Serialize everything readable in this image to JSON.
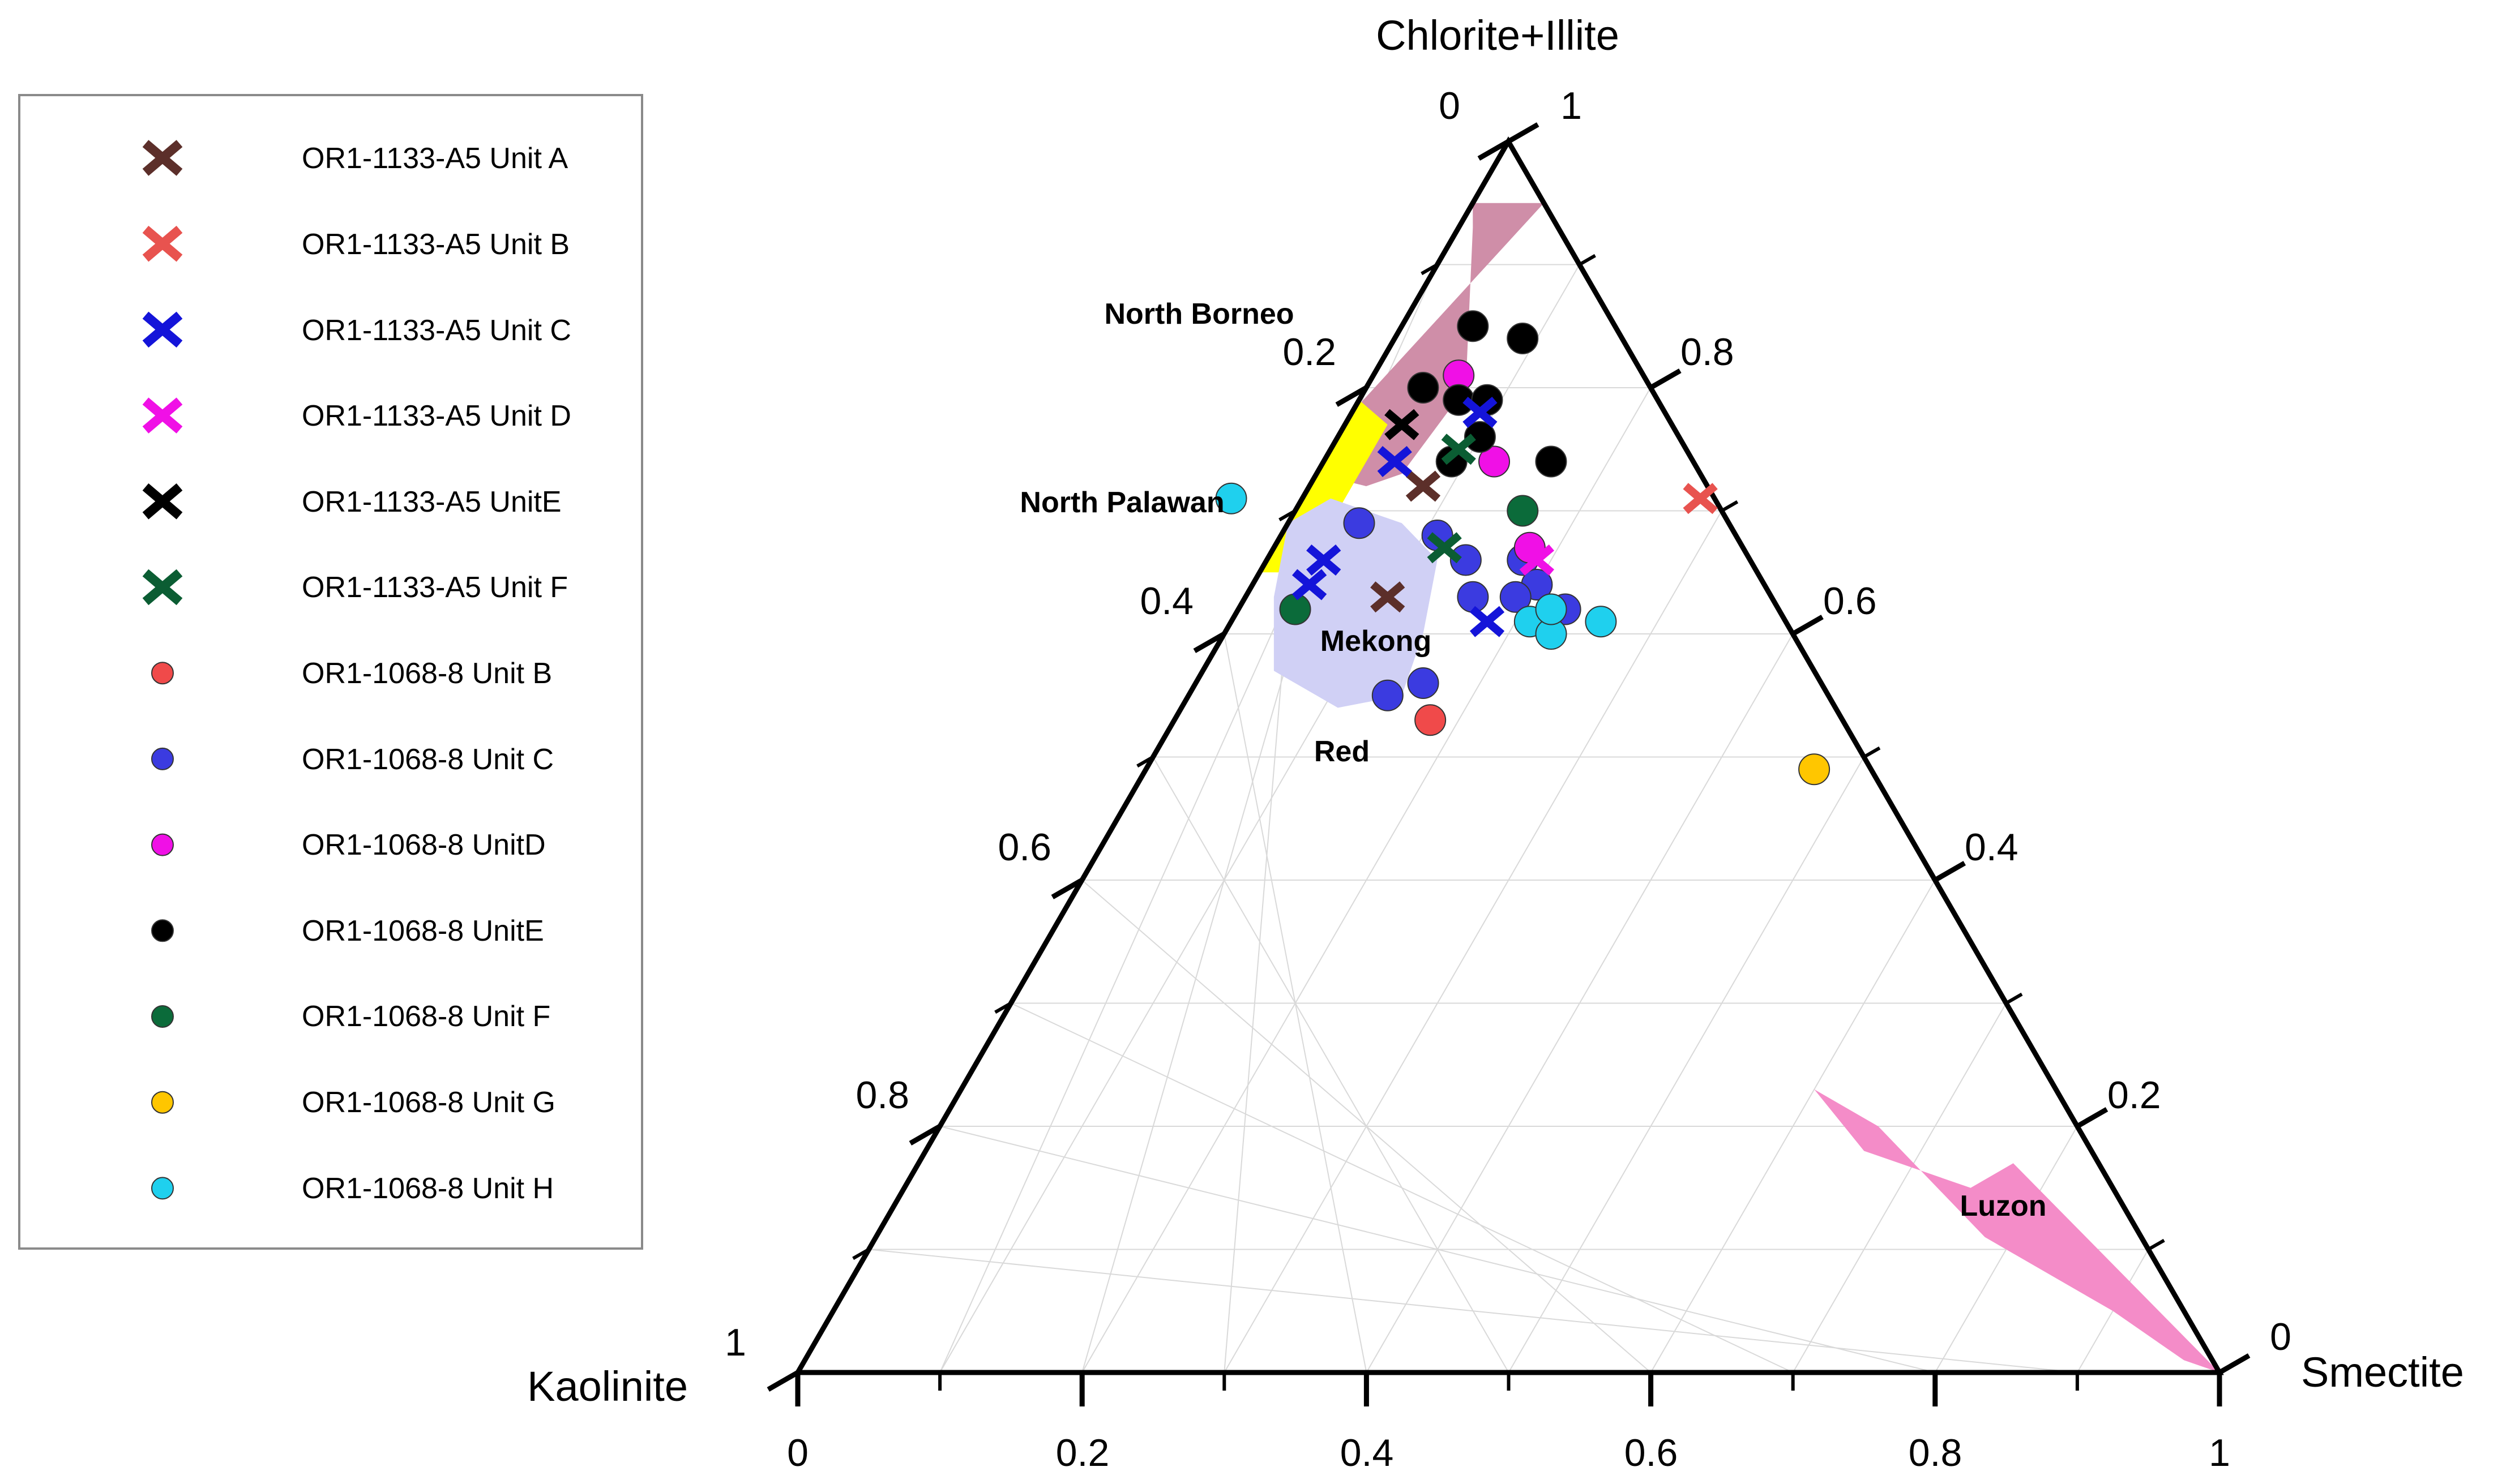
{
  "chart_data": {
    "type": "ternary",
    "axes": {
      "top": "Chlorite+Illite",
      "left": "Kaolinite",
      "right": "Smectite"
    },
    "ticks": {
      "bottom": [
        "0",
        "0.2",
        "0.4",
        "0.6",
        "0.8",
        "1"
      ],
      "left": [
        "0.2",
        "0.4",
        "0.6",
        "0.8",
        "1"
      ],
      "right": [
        "0.2",
        "0.4",
        "0.6",
        "0.8"
      ],
      "top_left": "0",
      "top_right": "1",
      "right_corner": "0"
    },
    "grid": true,
    "legend_position": "left",
    "series": [
      {
        "name": "OR1-1133-A5 Unit A",
        "marker": "x",
        "color": "#5c2f2a",
        "points": [
          [
            0.2,
            0.72,
            0.08
          ],
          [
            0.27,
            0.63,
            0.1
          ]
        ]
      },
      {
        "name": "OR1-1133-A5 Unit B",
        "marker": "x",
        "color": "#e8534f",
        "points": [
          [
            0.01,
            0.71,
            0.28
          ]
        ]
      },
      {
        "name": "OR1-1133-A5 Unit C",
        "marker": "x",
        "color": "#1414d9",
        "points": [
          [
            0.13,
            0.78,
            0.09
          ],
          [
            0.21,
            0.74,
            0.05
          ],
          [
            0.3,
            0.66,
            0.04
          ],
          [
            0.32,
            0.64,
            0.04
          ],
          [
            0.21,
            0.61,
            0.18
          ]
        ]
      },
      {
        "name": "OR1-1133-A5 Unit D",
        "marker": "x",
        "color": "#f010e6",
        "points": [
          [
            0.15,
            0.66,
            0.19
          ]
        ]
      },
      {
        "name": "OR1-1133-A5 UnitE",
        "marker": "x",
        "color": "#000000",
        "points": [
          [
            0.19,
            0.77,
            0.04
          ]
        ]
      },
      {
        "name": "OR1-1133-A5 Unit F",
        "marker": "x",
        "color": "#0b5d33",
        "points": [
          [
            0.16,
            0.75,
            0.09
          ],
          [
            0.21,
            0.67,
            0.12
          ]
        ]
      },
      {
        "name": "OR1-1068-8 Unit B",
        "marker": "circle",
        "color": "#f04a4a",
        "points": [
          [
            0.29,
            0.53,
            0.18
          ]
        ]
      },
      {
        "name": "OR1-1068-8 Unit C",
        "marker": "circle",
        "color": "#3b3be0",
        "points": [
          [
            0.26,
            0.69,
            0.05
          ],
          [
            0.21,
            0.68,
            0.11
          ],
          [
            0.2,
            0.66,
            0.14
          ],
          [
            0.16,
            0.66,
            0.18
          ],
          [
            0.21,
            0.63,
            0.16
          ],
          [
            0.16,
            0.64,
            0.2
          ],
          [
            0.18,
            0.63,
            0.19
          ],
          [
            0.15,
            0.62,
            0.23
          ],
          [
            0.28,
            0.56,
            0.16
          ],
          [
            0.31,
            0.55,
            0.14
          ]
        ]
      },
      {
        "name": "OR1-1068-8 UnitD",
        "marker": "circle",
        "color": "#f010e6",
        "points": [
          [
            0.13,
            0.81,
            0.06
          ],
          [
            0.14,
            0.74,
            0.12
          ],
          [
            0.15,
            0.67,
            0.18
          ]
        ]
      },
      {
        "name": "OR1-1068-8 UnitE",
        "marker": "circle",
        "color": "#000000",
        "points": [
          [
            0.1,
            0.85,
            0.05
          ],
          [
            0.16,
            0.8,
            0.04
          ],
          [
            0.07,
            0.84,
            0.09
          ],
          [
            0.14,
            0.79,
            0.07
          ],
          [
            0.12,
            0.79,
            0.09
          ],
          [
            0.14,
            0.76,
            0.1
          ],
          [
            0.17,
            0.74,
            0.09
          ],
          [
            0.1,
            0.74,
            0.16
          ]
        ]
      },
      {
        "name": "OR1-1068-8 Unit F",
        "marker": "circle",
        "color": "#0b6b3a",
        "points": [
          [
            0.14,
            0.7,
            0.16
          ],
          [
            0.34,
            0.62,
            0.04
          ]
        ]
      },
      {
        "name": "OR1-1068-8 Unit G",
        "marker": "circle",
        "color": "#ffc600",
        "points": [
          [
            0.04,
            0.49,
            0.47
          ]
        ]
      },
      {
        "name": "OR1-1068-8 Unit H",
        "marker": "circle",
        "color": "#1fd0ee",
        "points": [
          [
            0.34,
            0.71,
            -0.05
          ],
          [
            0.18,
            0.61,
            0.21
          ],
          [
            0.13,
            0.61,
            0.26
          ],
          [
            0.17,
            0.6,
            0.23
          ],
          [
            0.16,
            0.62,
            0.22
          ]
        ]
      }
    ],
    "regions": [
      {
        "name": "North Borneo",
        "color": "#cf8ea8",
        "points": [
          [
            0.22,
            0.78,
            0.0
          ],
          [
            0.0,
            0.95,
            0.05
          ],
          [
            0.05,
            0.95,
            0.0
          ],
          [
            0.06,
            0.93,
            0.01
          ],
          [
            0.13,
            0.8,
            0.07
          ],
          [
            0.21,
            0.73,
            0.06
          ],
          [
            0.24,
            0.72,
            0.04
          ],
          [
            0.27,
            0.73,
            0.0
          ]
        ]
      },
      {
        "name": "North Palawan",
        "color": "#ffff00",
        "points": [
          [
            0.35,
            0.65,
            0.0
          ],
          [
            0.33,
            0.65,
            0.02
          ],
          [
            0.28,
            0.69,
            0.03
          ],
          [
            0.22,
            0.75,
            0.03
          ],
          [
            0.2,
            0.77,
            0.03
          ],
          [
            0.21,
            0.79,
            0.0
          ]
        ]
      },
      {
        "name": "Mekong",
        "color": "#d0d0f5",
        "points": [
          [
            0.31,
            0.69,
            0.0
          ],
          [
            0.35,
            0.63,
            0.02
          ],
          [
            0.38,
            0.57,
            0.05
          ],
          [
            0.35,
            0.54,
            0.11
          ],
          [
            0.3,
            0.55,
            0.15
          ],
          [
            0.26,
            0.6,
            0.14
          ],
          [
            0.22,
            0.66,
            0.12
          ],
          [
            0.23,
            0.69,
            0.08
          ],
          [
            0.27,
            0.71,
            0.02
          ]
        ]
      },
      {
        "name": "Luzon",
        "color": "#f48cc8",
        "points": [
          [
            0.17,
            0.23,
            0.6
          ],
          [
            0.16,
            0.18,
            0.66
          ],
          [
            0.1,
            0.15,
            0.75
          ],
          [
            0.06,
            0.17,
            0.77
          ],
          [
            0.0,
            0.0,
            1.0
          ],
          [
            0.02,
            0.01,
            0.97
          ],
          [
            0.05,
            0.05,
            0.9
          ],
          [
            0.11,
            0.11,
            0.78
          ],
          [
            0.14,
            0.2,
            0.66
          ]
        ]
      }
    ],
    "region_labels": [
      "North Borneo",
      "North Palawan",
      "Mekong",
      "Red",
      "Luzon"
    ]
  }
}
